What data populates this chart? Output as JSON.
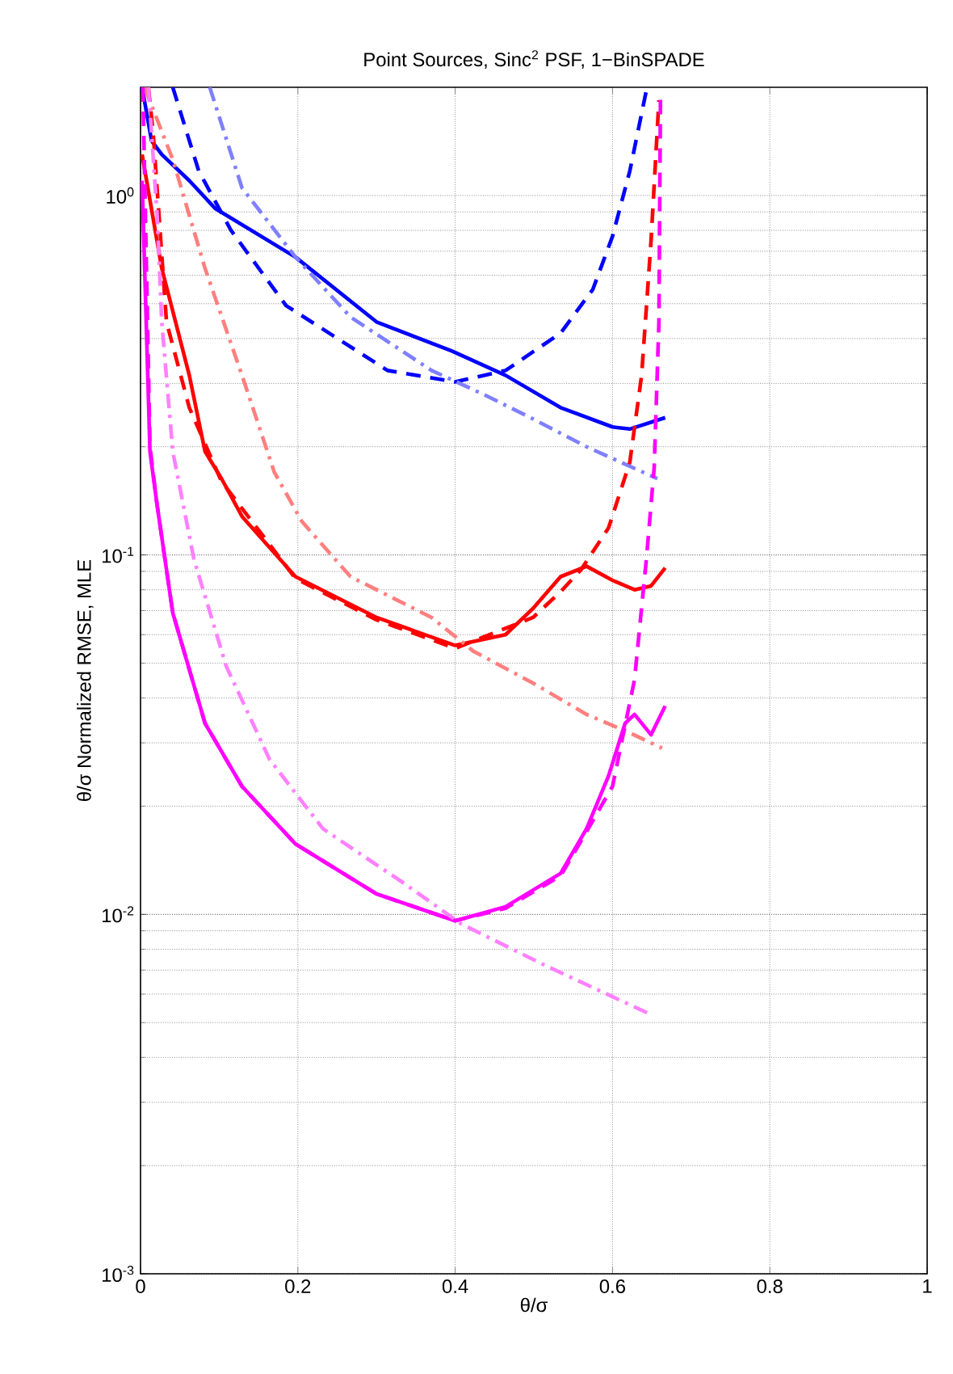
{
  "chart_data": {
    "type": "line",
    "title": "Point Sources, Sinc$^{2}$ PSF, 1−BinSPADE",
    "xlabel": "θ/σ",
    "ylabel": "θ/σ Normalized RMSE, MLE",
    "log": "y",
    "grid": true,
    "marker": "none",
    "xlim": [
      0,
      1
    ],
    "ylim": [
      0.001,
      2
    ],
    "xticks": [
      0,
      0.2,
      0.4,
      0.6,
      0.8,
      1
    ],
    "yticks": [
      {
        "value": 0.001,
        "label": "10$^{-3}$"
      },
      {
        "value": 0.01,
        "label": "10$^{-2}$"
      },
      {
        "value": 0.1,
        "label": "10$^{-1}$"
      },
      {
        "value": 1,
        "label": "10$^{0}$"
      }
    ],
    "series": [
      {
        "color": "#0000ff",
        "line_style": "solid",
        "x": [
          0.002,
          0.014,
          0.027,
          0.062,
          0.095,
          0.197,
          0.3,
          0.396,
          0.464,
          0.534,
          0.6,
          0.622,
          0.667
        ],
        "values": [
          2,
          1.42,
          1.3,
          1.1,
          0.92,
          0.674,
          0.445,
          0.369,
          0.316,
          0.257,
          0.227,
          0.224,
          0.241
        ]
      },
      {
        "color": "#0000ff",
        "line_style": "dashed",
        "x": [
          0.041,
          0.074,
          0.115,
          0.185,
          0.314,
          0.4,
          0.464,
          0.534,
          0.575,
          0.6,
          0.622,
          0.643
        ],
        "values": [
          2,
          1.17,
          0.8,
          0.494,
          0.326,
          0.303,
          0.326,
          0.414,
          0.548,
          0.77,
          1.17,
          1.96
        ]
      },
      {
        "color": "#7f7fff",
        "line_style": "dashdot",
        "x": [
          0.088,
          0.129,
          0.197,
          0.267,
          0.37,
          0.437,
          0.499,
          0.567,
          0.657
        ],
        "values": [
          2,
          1.05,
          0.674,
          0.459,
          0.326,
          0.279,
          0.239,
          0.2,
          0.163
        ]
      },
      {
        "color": "#ff0000",
        "line_style": "solid",
        "x": [
          0.002,
          0.027,
          0.062,
          0.082,
          0.103,
          0.129,
          0.197,
          0.3,
          0.4,
          0.464,
          0.499,
          0.534,
          0.567,
          0.6,
          0.628,
          0.649,
          0.667
        ],
        "values": [
          1.3,
          0.627,
          0.316,
          0.194,
          0.163,
          0.128,
          0.087,
          0.067,
          0.056,
          0.06,
          0.071,
          0.087,
          0.093,
          0.085,
          0.08,
          0.082,
          0.092
        ]
      },
      {
        "color": "#ff0000",
        "line_style": "dashed",
        "x": [
          0.01,
          0.016,
          0.033,
          0.062,
          0.103,
          0.197,
          0.3,
          0.4,
          0.499,
          0.534,
          0.56,
          0.595,
          0.622,
          0.637,
          0.649,
          0.659
        ],
        "values": [
          2,
          1.5,
          0.445,
          0.257,
          0.16,
          0.086,
          0.066,
          0.055,
          0.067,
          0.079,
          0.091,
          0.119,
          0.181,
          0.316,
          0.748,
          1.84
        ]
      },
      {
        "color": "#ff7f7f",
        "line_style": "dashdot",
        "x": [
          0.005,
          0.041,
          0.082,
          0.129,
          0.17,
          0.205,
          0.267,
          0.37,
          0.423,
          0.499,
          0.567,
          0.622,
          0.663
        ],
        "values": [
          2,
          1.26,
          0.627,
          0.316,
          0.17,
          0.124,
          0.087,
          0.067,
          0.054,
          0.044,
          0.036,
          0.032,
          0.029
        ]
      },
      {
        "color": "#ff00ff",
        "line_style": "solid",
        "x": [
          0.002,
          0.012,
          0.021,
          0.041,
          0.082,
          0.129,
          0.197,
          0.3,
          0.4,
          0.464,
          0.534,
          0.567,
          0.595,
          0.616,
          0.628,
          0.649,
          0.667
        ],
        "values": [
          1.1,
          0.194,
          0.138,
          0.069,
          0.034,
          0.0227,
          0.0157,
          0.0114,
          0.0096,
          0.0105,
          0.013,
          0.0173,
          0.0243,
          0.034,
          0.036,
          0.0316,
          0.038
        ]
      },
      {
        "color": "#ff00ff",
        "line_style": "dashed",
        "x": [
          0.003,
          0.012,
          0.021,
          0.041,
          0.082,
          0.129,
          0.197,
          0.3,
          0.4,
          0.464,
          0.534,
          0.567,
          0.6,
          0.628,
          0.643,
          0.653,
          0.659,
          0.661
        ],
        "values": [
          2,
          0.2,
          0.138,
          0.069,
          0.034,
          0.0227,
          0.0157,
          0.0114,
          0.0096,
          0.0104,
          0.0128,
          0.017,
          0.0227,
          0.045,
          0.097,
          0.175,
          0.445,
          1.9
        ]
      },
      {
        "color": "#ff80ff",
        "line_style": "dashdot",
        "x": [
          0.01,
          0.021,
          0.027,
          0.041,
          0.068,
          0.109,
          0.164,
          0.232,
          0.335,
          0.408,
          0.515,
          0.646
        ],
        "values": [
          2,
          0.89,
          0.445,
          0.194,
          0.097,
          0.049,
          0.027,
          0.0173,
          0.0122,
          0.0094,
          0.0072,
          0.0053
        ]
      }
    ]
  }
}
